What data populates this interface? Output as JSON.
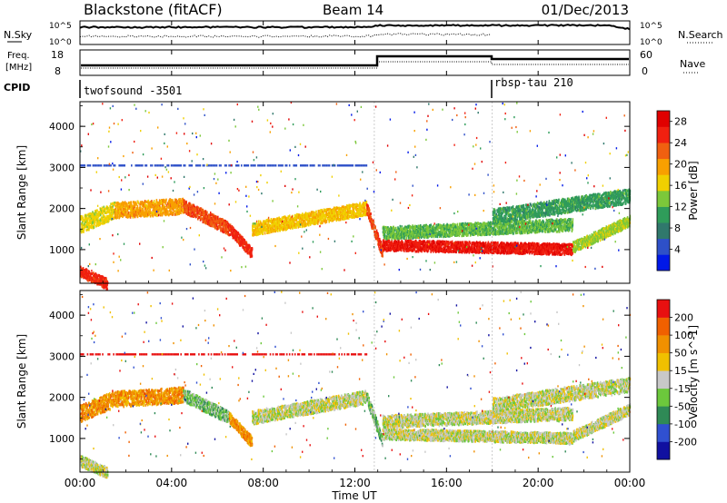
{
  "header": {
    "station": "Blackstone (fitACF)",
    "beam": "Beam 14",
    "date": "01/Dec/2013"
  },
  "param_panels": {
    "nsky_label": "N.Sky",
    "nsky_ticks": [
      "10^5",
      "10^0"
    ],
    "nsearch_label": "N.Search",
    "nsearch_ticks": [
      "10^5",
      "10^0"
    ],
    "freq_label_line1": "Freq.",
    "freq_label_line2": "[MHz]",
    "freq_ticks": [
      "18",
      "8"
    ],
    "nave_label": "Nave",
    "nave_ticks": [
      "60",
      "0"
    ],
    "cpid_label": "CPID",
    "cpid_segments": [
      {
        "name": "twofsound -3501",
        "start_hour": 0
      },
      {
        "name": "rbsp-tau 210",
        "start_hour": 18
      }
    ]
  },
  "chart_data": [
    {
      "type": "heatmap",
      "title": "",
      "xlabel": "Time UT",
      "ylabel": "Slant Range [km]",
      "xlim_hours": [
        0,
        24
      ],
      "ylim": [
        180,
        4600
      ],
      "yticks": [
        "1000",
        "2000",
        "3000",
        "4000"
      ],
      "colorbar": {
        "label": "Power [dB]",
        "tick_labels": [
          "4",
          "8",
          "12",
          "16",
          "20",
          "24",
          "28"
        ],
        "range": [
          0,
          30
        ],
        "colors": [
          "#0018e8",
          "#2e50c8",
          "#30786c",
          "#2f9c5a",
          "#7cc83a",
          "#f0d000",
          "#f8a000",
          "#f06010",
          "#f02010",
          "#e00000"
        ]
      },
      "echo_bands": [
        {
          "from_hour": 0,
          "to_hour": 1.2,
          "range_start_km": 450,
          "range_end_km": 150,
          "width_km": 260,
          "level": 26
        },
        {
          "from_hour": 0,
          "to_hour": 1.5,
          "range_start_km": 1600,
          "range_end_km": 1950,
          "width_km": 400,
          "level": 16
        },
        {
          "from_hour": 1.5,
          "to_hour": 4.5,
          "range_start_km": 1950,
          "range_end_km": 2050,
          "width_km": 380,
          "level": 20
        },
        {
          "from_hour": 4.5,
          "to_hour": 6.5,
          "range_start_km": 2050,
          "range_end_km": 1500,
          "width_km": 300,
          "level": 24
        },
        {
          "from_hour": 6.5,
          "to_hour": 7.5,
          "range_start_km": 1500,
          "range_end_km": 900,
          "width_km": 260,
          "level": 26
        },
        {
          "from_hour": 7.5,
          "to_hour": 12.5,
          "range_start_km": 1500,
          "range_end_km": 2000,
          "width_km": 320,
          "level": 18
        },
        {
          "from_hour": 12.5,
          "to_hour": 13.2,
          "range_start_km": 2000,
          "range_end_km": 900,
          "width_km": 280,
          "level": 24
        },
        {
          "from_hour": 13.2,
          "to_hour": 21.5,
          "range_start_km": 1100,
          "range_end_km": 1000,
          "width_km": 260,
          "level": 28
        },
        {
          "from_hour": 13.2,
          "to_hour": 21.5,
          "range_start_km": 1400,
          "range_end_km": 1600,
          "width_km": 300,
          "level": 12
        },
        {
          "from_hour": 18,
          "to_hour": 24,
          "range_start_km": 1800,
          "range_end_km": 2300,
          "width_km": 350,
          "level": 10
        },
        {
          "from_hour": 21.5,
          "to_hour": 24,
          "range_start_km": 1050,
          "range_end_km": 1700,
          "width_km": 260,
          "level": 14
        }
      ],
      "ionospheric_line": {
        "range_km": 3050,
        "from_hour": 0,
        "to_hour": 12.5,
        "level": 6
      }
    },
    {
      "type": "heatmap",
      "title": "",
      "xlabel": "Time UT",
      "ylabel": "Slant Range [km]",
      "xlim_hours": [
        0,
        24
      ],
      "ylim": [
        180,
        4600
      ],
      "yticks": [
        "1000",
        "2000",
        "3000",
        "4000"
      ],
      "colorbar": {
        "label": "Velocity [m s^-1]",
        "tick_labels": [
          "200",
          "100",
          "50",
          "15",
          "-15",
          "-50",
          "-100",
          "-200"
        ],
        "colors": [
          "#1010a0",
          "#3050d0",
          "#2f8a56",
          "#6cc83c",
          "#c8c8c8",
          "#f0c000",
          "#f09000",
          "#f06000",
          "#e81010"
        ]
      },
      "echo_bands": [
        {
          "from_hour": 0,
          "to_hour": 1.2,
          "range_start_km": 450,
          "range_end_km": 150,
          "width_km": 260,
          "level": 4
        },
        {
          "from_hour": 0,
          "to_hour": 1.5,
          "range_start_km": 1600,
          "range_end_km": 1950,
          "width_km": 400,
          "level": 6
        },
        {
          "from_hour": 1.5,
          "to_hour": 4.5,
          "range_start_km": 1950,
          "range_end_km": 2050,
          "width_km": 380,
          "level": 6
        },
        {
          "from_hour": 4.5,
          "to_hour": 6.5,
          "range_start_km": 2050,
          "range_end_km": 1500,
          "width_km": 300,
          "level": 3
        },
        {
          "from_hour": 6.5,
          "to_hour": 7.5,
          "range_start_km": 1500,
          "range_end_km": 900,
          "width_km": 260,
          "level": 6
        },
        {
          "from_hour": 7.5,
          "to_hour": 12.5,
          "range_start_km": 1500,
          "range_end_km": 2000,
          "width_km": 320,
          "level": 4
        },
        {
          "from_hour": 12.5,
          "to_hour": 13.2,
          "range_start_km": 2000,
          "range_end_km": 900,
          "width_km": 280,
          "level": 3
        },
        {
          "from_hour": 13.2,
          "to_hour": 21.5,
          "range_start_km": 1100,
          "range_end_km": 1000,
          "width_km": 260,
          "level": 4
        },
        {
          "from_hour": 13.2,
          "to_hour": 21.5,
          "range_start_km": 1400,
          "range_end_km": 1600,
          "width_km": 300,
          "level": 4
        },
        {
          "from_hour": 18,
          "to_hour": 24,
          "range_start_km": 1800,
          "range_end_km": 2300,
          "width_km": 350,
          "level": 4
        },
        {
          "from_hour": 21.5,
          "to_hour": 24,
          "range_start_km": 1050,
          "range_end_km": 1700,
          "width_km": 260,
          "level": 4
        }
      ],
      "ionospheric_line": {
        "range_km": 3050,
        "from_hour": 0,
        "to_hour": 12.5,
        "level": 8
      }
    }
  ],
  "time_axis": {
    "label": "Time UT",
    "tick_labels": [
      "00:00",
      "04:00",
      "08:00",
      "12:00",
      "16:00",
      "20:00",
      "00:00"
    ],
    "tick_hours": [
      0,
      4,
      8,
      12,
      16,
      20,
      24
    ]
  },
  "colors": {
    "axis": "#000000",
    "background": "#ffffff"
  }
}
